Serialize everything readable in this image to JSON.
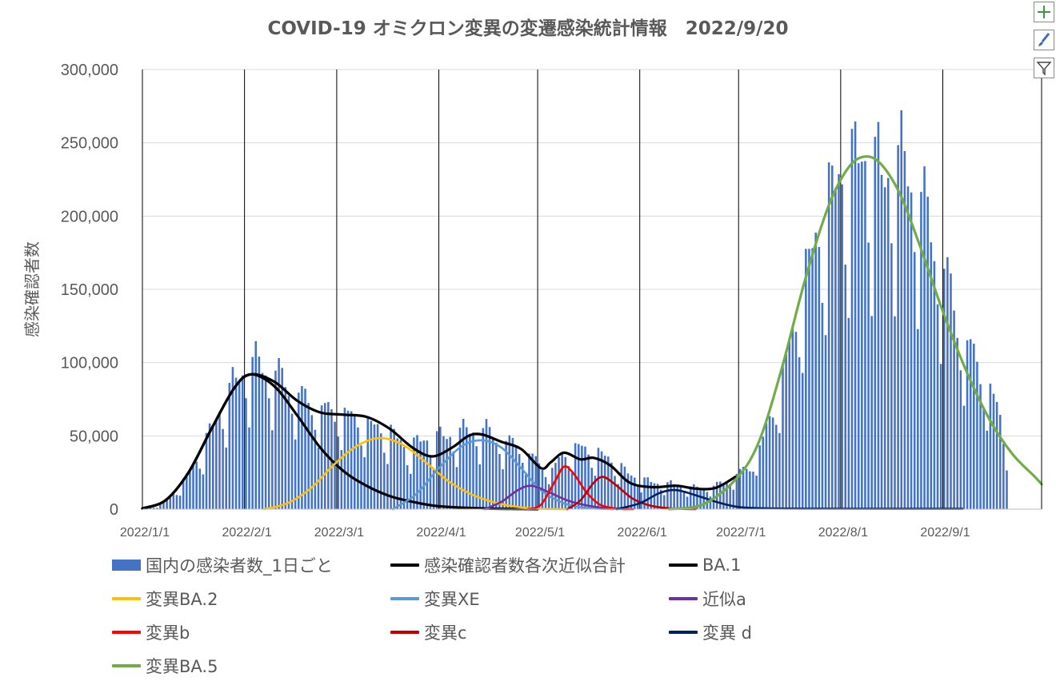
{
  "chart_data": {
    "type": "bar",
    "title": "COVID-19 オミクロン変異の変遷感染統計情報　2022/9/20",
    "ylabel": "感染確認者数",
    "xlabel": "",
    "ylim": [
      0,
      300000
    ],
    "y_ticks": [
      "0",
      "50,000",
      "100,000",
      "150,000",
      "200,000",
      "250,000",
      "300,000"
    ],
    "x_ticks": [
      {
        "label": "2022/1/1",
        "day": 0
      },
      {
        "label": "2022/2/1",
        "day": 31
      },
      {
        "label": "2022/3/1",
        "day": 59
      },
      {
        "label": "2022/4/1",
        "day": 90
      },
      {
        "label": "2022/5/1",
        "day": 120
      },
      {
        "label": "2022/6/1",
        "day": 151
      },
      {
        "label": "2022/7/1",
        "day": 181
      },
      {
        "label": "2022/8/1",
        "day": 212
      },
      {
        "label": "2022/9/1",
        "day": 243
      }
    ],
    "x_range": [
      "2022/1/1",
      "2022/10/1"
    ],
    "bar_series": {
      "name": "国内の感染者数_1日ごと",
      "color": "#4472C4",
      "date_range": [
        "2022/1/1",
        "2022/9/20"
      ],
      "anchors": [
        [
          "2022/1/1",
          500
        ],
        [
          "2022/1/5",
          1500
        ],
        [
          "2022/1/9",
          8000
        ],
        [
          "2022/1/13",
          18000
        ],
        [
          "2022/1/17",
          32000
        ],
        [
          "2022/1/21",
          50000
        ],
        [
          "2022/1/25",
          70000
        ],
        [
          "2022/1/29",
          85000
        ],
        [
          "2022/2/2",
          97000
        ],
        [
          "2022/2/6",
          95000
        ],
        [
          "2022/2/10",
          90000
        ],
        [
          "2022/2/14",
          82000
        ],
        [
          "2022/2/18",
          74000
        ],
        [
          "2022/2/22",
          68000
        ],
        [
          "2022/2/26",
          65000
        ],
        [
          "2022/3/2",
          64000
        ],
        [
          "2022/3/6",
          60000
        ],
        [
          "2022/3/10",
          56000
        ],
        [
          "2022/3/14",
          53000
        ],
        [
          "2022/3/18",
          49000
        ],
        [
          "2022/3/22",
          40000
        ],
        [
          "2022/3/26",
          45000
        ],
        [
          "2022/3/30",
          47000
        ],
        [
          "2022/4/3",
          48000
        ],
        [
          "2022/4/7",
          51000
        ],
        [
          "2022/4/11",
          53000
        ],
        [
          "2022/4/15",
          52000
        ],
        [
          "2022/4/19",
          46000
        ],
        [
          "2022/4/23",
          43000
        ],
        [
          "2022/4/27",
          38000
        ],
        [
          "2022/5/1",
          30000
        ],
        [
          "2022/5/5",
          26000
        ],
        [
          "2022/5/9",
          38000
        ],
        [
          "2022/5/13",
          41000
        ],
        [
          "2022/5/17",
          38000
        ],
        [
          "2022/5/21",
          35000
        ],
        [
          "2022/5/25",
          29000
        ],
        [
          "2022/5/29",
          22000
        ],
        [
          "2022/6/2",
          19000
        ],
        [
          "2022/6/6",
          17000
        ],
        [
          "2022/6/10",
          16500
        ],
        [
          "2022/6/14",
          15000
        ],
        [
          "2022/6/18",
          14000
        ],
        [
          "2022/6/22",
          14500
        ],
        [
          "2022/6/26",
          17500
        ],
        [
          "2022/6/30",
          23000
        ],
        [
          "2022/7/4",
          28000
        ],
        [
          "2022/7/8",
          45000
        ],
        [
          "2022/7/12",
          75000
        ],
        [
          "2022/7/16",
          105000
        ],
        [
          "2022/7/20",
          150000
        ],
        [
          "2022/7/24",
          175000
        ],
        [
          "2022/7/28",
          205000
        ],
        [
          "2022/8/1",
          220000
        ],
        [
          "2022/8/5",
          228000
        ],
        [
          "2022/8/9",
          235000
        ],
        [
          "2022/8/13",
          218000
        ],
        [
          "2022/8/17",
          230000
        ],
        [
          "2022/8/21",
          225000
        ],
        [
          "2022/8/25",
          205000
        ],
        [
          "2022/8/29",
          178000
        ],
        [
          "2022/9/2",
          150000
        ],
        [
          "2022/9/6",
          118000
        ],
        [
          "2022/9/10",
          100000
        ],
        [
          "2022/9/14",
          85000
        ],
        [
          "2022/9/18",
          60000
        ],
        [
          "2022/9/20",
          35000
        ]
      ]
    },
    "series": [
      {
        "name": "感染確認者数各次近似合計",
        "color": "#000000",
        "width": 3.2,
        "points": [
          [
            "2022/1/1",
            500
          ],
          [
            "2022/1/8",
            6000
          ],
          [
            "2022/1/15",
            25000
          ],
          [
            "2022/1/22",
            55000
          ],
          [
            "2022/1/29",
            83000
          ],
          [
            "2022/2/3",
            92000
          ],
          [
            "2022/2/10",
            87000
          ],
          [
            "2022/2/17",
            74000
          ],
          [
            "2022/2/24",
            66000
          ],
          [
            "2022/3/3",
            64500
          ],
          [
            "2022/3/10",
            63000
          ],
          [
            "2022/3/17",
            55000
          ],
          [
            "2022/3/24",
            42000
          ],
          [
            "2022/3/30",
            36000
          ],
          [
            "2022/4/5",
            42000
          ],
          [
            "2022/4/10",
            50000
          ],
          [
            "2022/4/14",
            51000
          ],
          [
            "2022/4/20",
            46000
          ],
          [
            "2022/4/26",
            41000
          ],
          [
            "2022/5/2",
            28000
          ],
          [
            "2022/5/5",
            32000
          ],
          [
            "2022/5/9",
            38500
          ],
          [
            "2022/5/14",
            34000
          ],
          [
            "2022/5/18",
            35000
          ],
          [
            "2022/5/23",
            30000
          ],
          [
            "2022/5/29",
            18000
          ],
          [
            "2022/6/5",
            15000
          ],
          [
            "2022/6/12",
            16000
          ],
          [
            "2022/6/18",
            14000
          ],
          [
            "2022/6/24",
            14500
          ],
          [
            "2022/6/30",
            22000
          ]
        ]
      },
      {
        "name": "BA.1",
        "color": "#000000",
        "width": 3.2,
        "points": [
          [
            "2022/1/1",
            500
          ],
          [
            "2022/1/8",
            6000
          ],
          [
            "2022/1/15",
            25000
          ],
          [
            "2022/1/22",
            55000
          ],
          [
            "2022/1/29",
            83000
          ],
          [
            "2022/2/3",
            92000
          ],
          [
            "2022/2/10",
            84000
          ],
          [
            "2022/2/17",
            64000
          ],
          [
            "2022/2/24",
            42000
          ],
          [
            "2022/3/3",
            26000
          ],
          [
            "2022/3/10",
            16000
          ],
          [
            "2022/3/17",
            9000
          ],
          [
            "2022/3/24",
            5000
          ],
          [
            "2022/4/1",
            2000
          ],
          [
            "2022/4/15",
            500
          ],
          [
            "2022/5/1",
            0
          ]
        ]
      },
      {
        "name": "変異BA.2",
        "color": "#FFC000",
        "width": 2.6,
        "points": [
          [
            "2022/2/7",
            0
          ],
          [
            "2022/2/14",
            4000
          ],
          [
            "2022/2/21",
            14000
          ],
          [
            "2022/2/28",
            30000
          ],
          [
            "2022/3/7",
            43000
          ],
          [
            "2022/3/14",
            48500
          ],
          [
            "2022/3/21",
            44000
          ],
          [
            "2022/3/28",
            32000
          ],
          [
            "2022/4/4",
            19000
          ],
          [
            "2022/4/11",
            10000
          ],
          [
            "2022/4/18",
            4500
          ],
          [
            "2022/4/25",
            1500
          ],
          [
            "2022/5/2",
            300
          ],
          [
            "2022/5/10",
            0
          ]
        ]
      },
      {
        "name": "変異XE",
        "color": "#5B9BD5",
        "width": 2.6,
        "points": [
          [
            "2022/3/18",
            0
          ],
          [
            "2022/3/25",
            10000
          ],
          [
            "2022/4/1",
            28000
          ],
          [
            "2022/4/8",
            43000
          ],
          [
            "2022/4/14",
            47000
          ],
          [
            "2022/4/20",
            42000
          ],
          [
            "2022/4/26",
            28000
          ],
          [
            "2022/5/2",
            13000
          ],
          [
            "2022/5/9",
            4000
          ],
          [
            "2022/5/16",
            800
          ],
          [
            "2022/5/24",
            0
          ]
        ]
      },
      {
        "name": "近似a",
        "color": "#7030A0",
        "width": 2.6,
        "points": [
          [
            "2022/4/15",
            0
          ],
          [
            "2022/4/20",
            5000
          ],
          [
            "2022/4/25",
            13000
          ],
          [
            "2022/4/29",
            16000
          ],
          [
            "2022/5/4",
            12000
          ],
          [
            "2022/5/10",
            6000
          ],
          [
            "2022/5/16",
            2500
          ],
          [
            "2022/5/22",
            600
          ],
          [
            "2022/5/28",
            0
          ]
        ]
      },
      {
        "name": "変異b",
        "color": "#FF0000",
        "width": 2.6,
        "points": [
          [
            "2022/4/28",
            0
          ],
          [
            "2022/5/2",
            3000
          ],
          [
            "2022/5/6",
            18000
          ],
          [
            "2022/5/9",
            29000
          ],
          [
            "2022/5/12",
            24000
          ],
          [
            "2022/5/16",
            11000
          ],
          [
            "2022/5/20",
            3000
          ],
          [
            "2022/5/25",
            400
          ],
          [
            "2022/5/30",
            0
          ]
        ]
      },
      {
        "name": "変異c",
        "color": "#C00000",
        "width": 2.6,
        "points": [
          [
            "2022/5/10",
            0
          ],
          [
            "2022/5/14",
            6000
          ],
          [
            "2022/5/18",
            18000
          ],
          [
            "2022/5/21",
            22000
          ],
          [
            "2022/5/25",
            16000
          ],
          [
            "2022/5/30",
            7000
          ],
          [
            "2022/6/5",
            2000
          ],
          [
            "2022/6/12",
            300
          ],
          [
            "2022/6/18",
            0
          ]
        ]
      },
      {
        "name": "変異 d",
        "color": "#002060",
        "width": 2.6,
        "points": [
          [
            "2022/5/25",
            0
          ],
          [
            "2022/6/1",
            4000
          ],
          [
            "2022/6/7",
            11000
          ],
          [
            "2022/6/12",
            13000
          ],
          [
            "2022/6/18",
            9500
          ],
          [
            "2022/6/25",
            4500
          ],
          [
            "2022/7/1",
            1500
          ],
          [
            "2022/7/10",
            500
          ],
          [
            "2022/8/1",
            300
          ],
          [
            "2022/9/7",
            200
          ]
        ]
      },
      {
        "name": "変異BA.5",
        "color": "#70AD47",
        "width": 3.2,
        "points": [
          [
            "2022/6/10",
            0
          ],
          [
            "2022/6/20",
            3000
          ],
          [
            "2022/6/30",
            20000
          ],
          [
            "2022/7/7",
            45000
          ],
          [
            "2022/7/14",
            95000
          ],
          [
            "2022/7/21",
            155000
          ],
          [
            "2022/7/28",
            205000
          ],
          [
            "2022/8/3",
            232000
          ],
          [
            "2022/8/8",
            240500
          ],
          [
            "2022/8/13",
            236000
          ],
          [
            "2022/8/19",
            215000
          ],
          [
            "2022/8/25",
            180000
          ],
          [
            "2022/9/1",
            135000
          ],
          [
            "2022/9/8",
            95000
          ],
          [
            "2022/9/15",
            62000
          ],
          [
            "2022/9/22",
            38000
          ],
          [
            "2022/9/29",
            22000
          ],
          [
            "2022/10/1",
            17000
          ]
        ]
      }
    ],
    "legend_position": "bottom",
    "grid": true
  }
}
